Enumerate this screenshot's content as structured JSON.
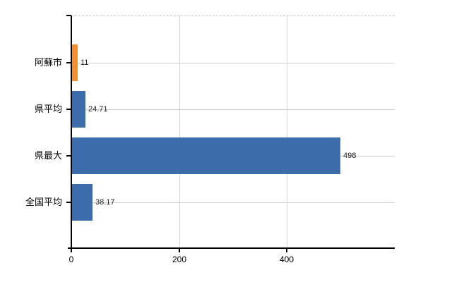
{
  "chart_data": {
    "type": "bar",
    "orientation": "horizontal",
    "title": "",
    "xlabel": "",
    "ylabel": "",
    "categories": [
      "阿蘇市",
      "県平均",
      "県最大",
      "全国平均"
    ],
    "values": [
      11,
      24.71,
      498,
      38.17
    ],
    "value_labels": [
      "11",
      "24.71",
      "498",
      "38.17"
    ],
    "bar_colors": [
      "#ee9033",
      "#3c6ca9",
      "#3c6ca9",
      "#3c6ca9"
    ],
    "highlighted_category": "阿蘇市",
    "xlim": [
      0,
      600
    ],
    "xticks": [
      0,
      200,
      400
    ],
    "xtick_labels": [
      "0",
      "200",
      "400"
    ],
    "grid": true,
    "legend_position": "none",
    "colors": {
      "default_bar": "#3c6ca9",
      "highlight_bar": "#ee9033",
      "axis": "#000000",
      "gridline": "#cfcfcf",
      "value_label": "#1f1f1f",
      "tick_label": "#000000",
      "background": "#ffffff"
    }
  }
}
